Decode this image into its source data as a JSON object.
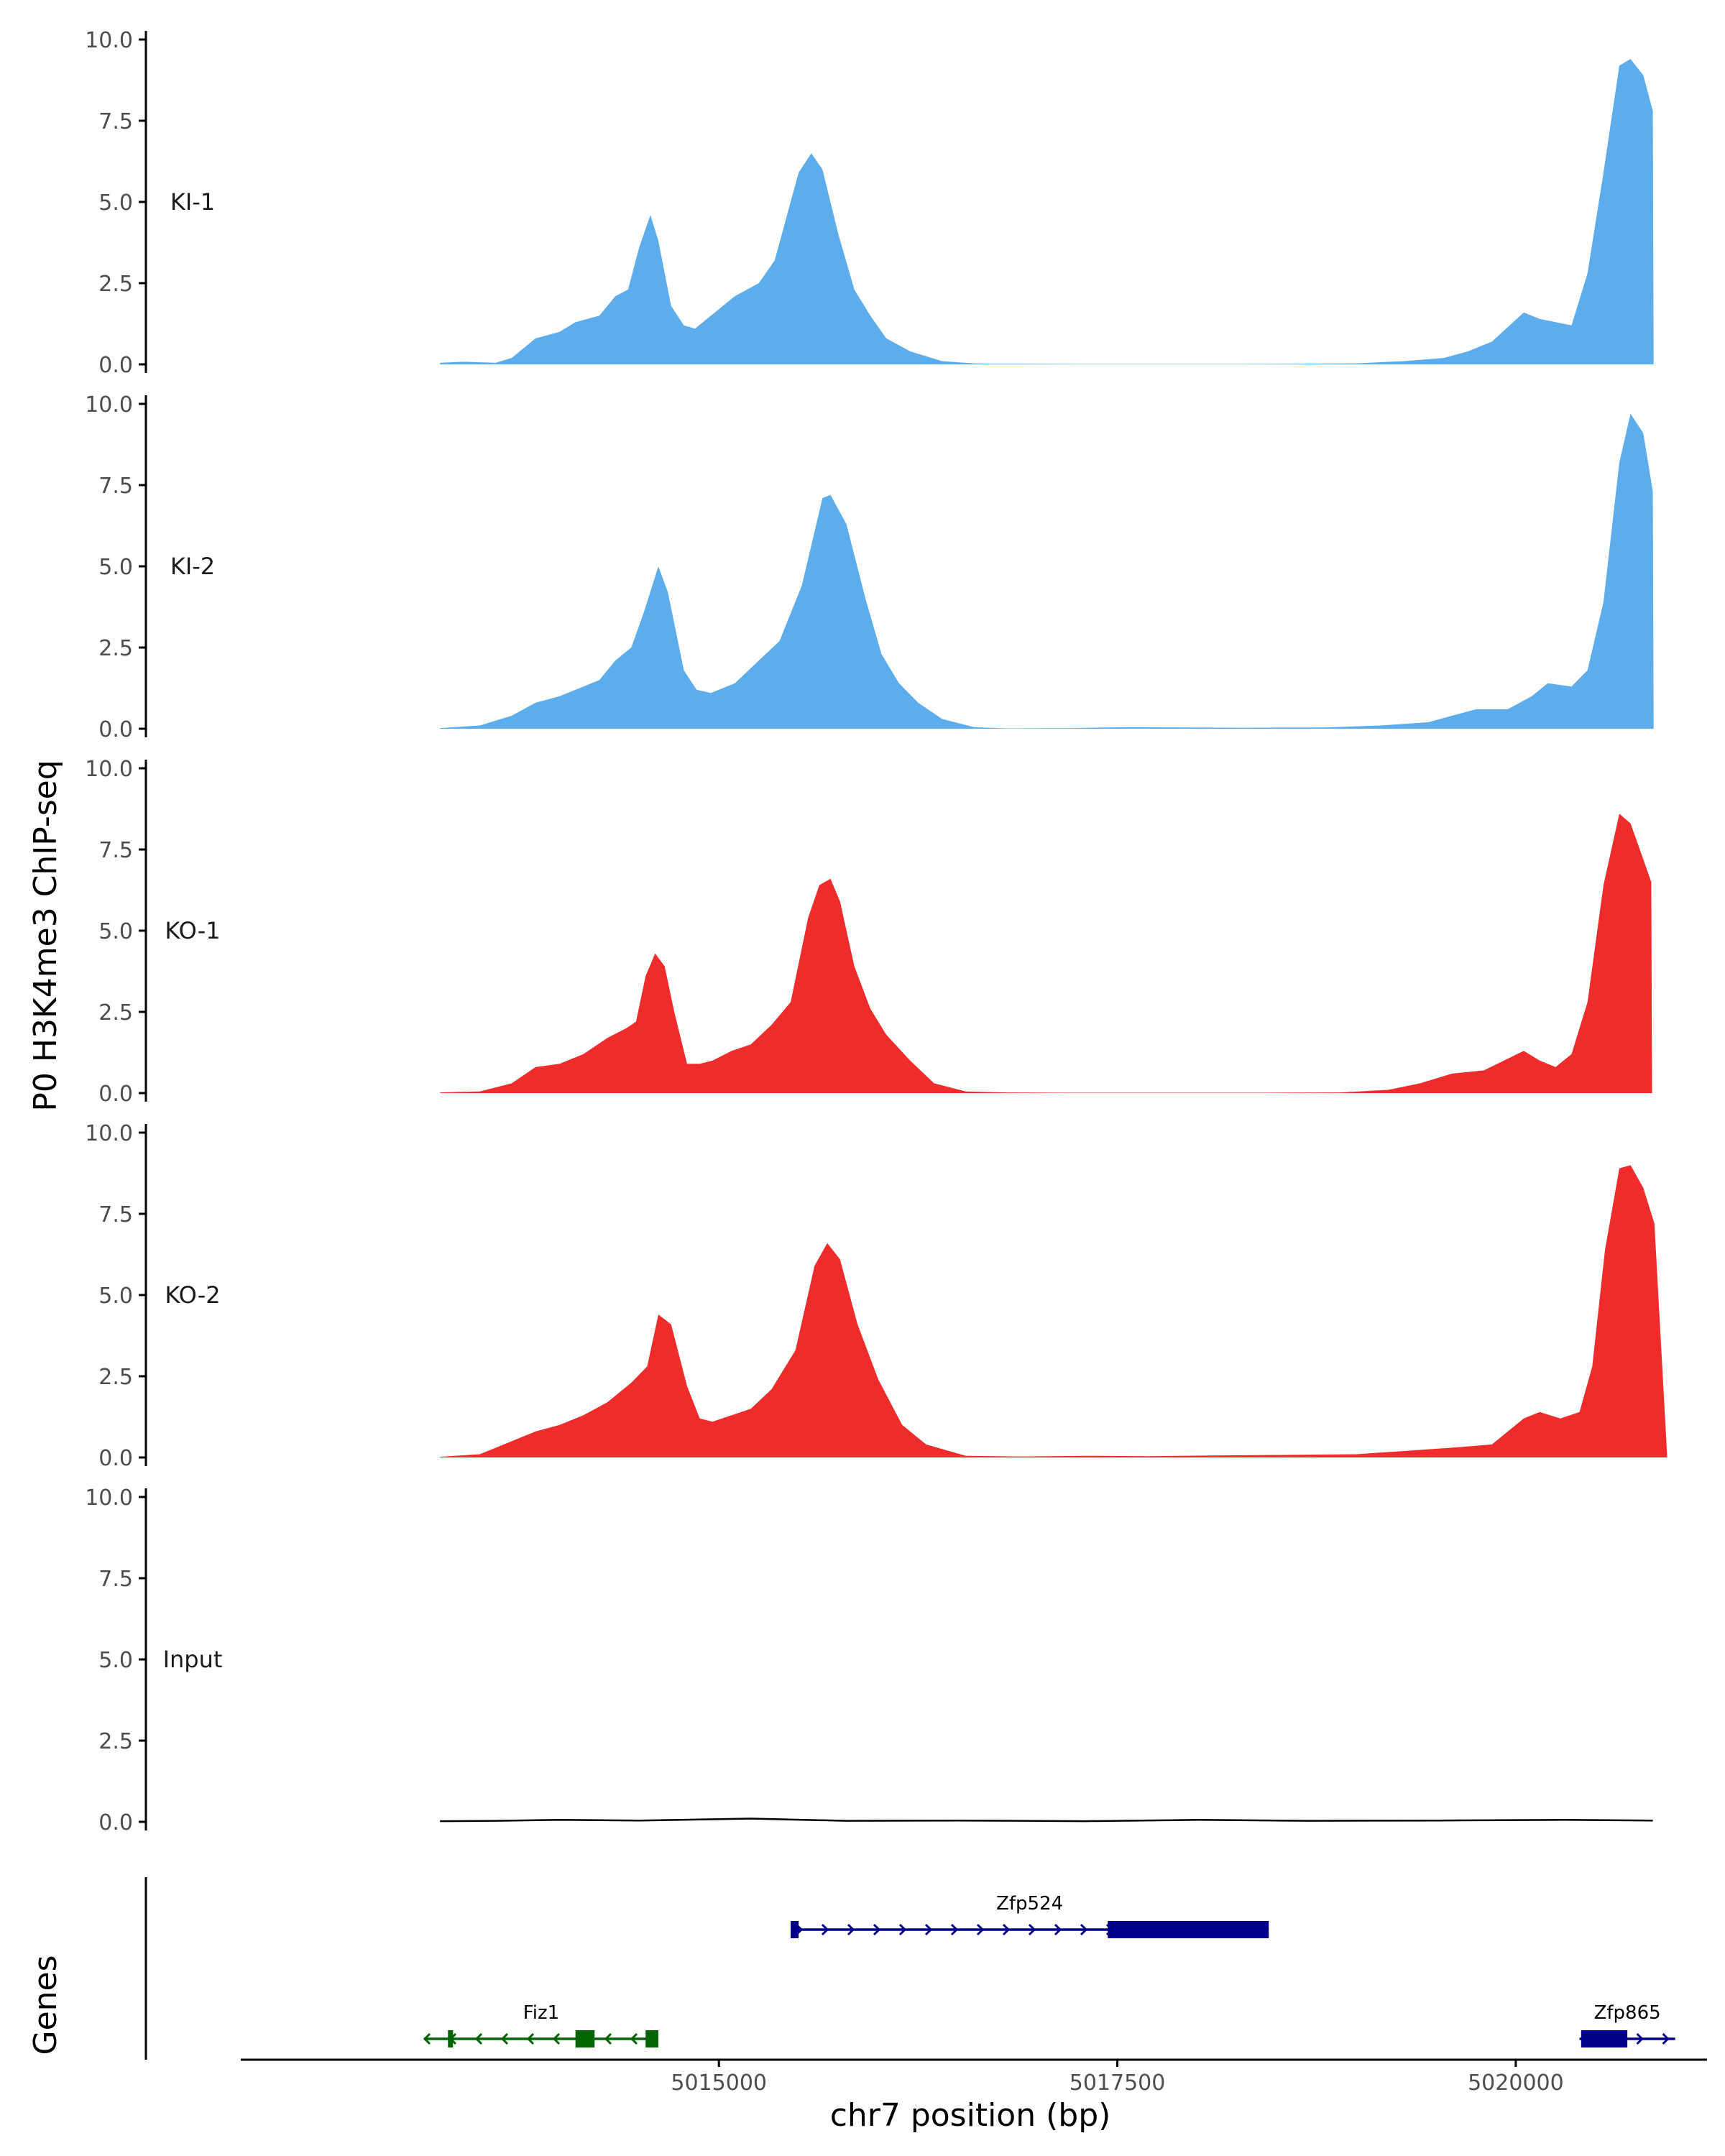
{
  "colors": {
    "ki": "#5DADEC",
    "ko": "#EE2C2C",
    "input": "#000000",
    "fiz1": "#006400",
    "zfp": "#00008B",
    "axis": "#000000"
  },
  "labels": {
    "y_title": "P0 H3K4me3 ChIP-seq",
    "genes_title": "Genes",
    "x_title": "chr7 position (bp)"
  },
  "chart_data": {
    "type": "area",
    "xlabel": "chr7 position (bp)",
    "ylabel": "P0 H3K4me3 ChIP-seq",
    "xlim": [
      5012000,
      5021200
    ],
    "ylim": [
      0,
      10
    ],
    "y_ticks": [
      "0.0",
      "2.5",
      "5.0",
      "7.5",
      "10.0"
    ],
    "x_ticks": [
      5015000,
      5017500,
      5020000
    ],
    "x_tick_labels": [
      "5015000",
      "5017500",
      "5020000"
    ],
    "tracks": [
      {
        "name": "KI-1",
        "color": "#5DADEC",
        "points": [
          [
            5013250,
            0.05
          ],
          [
            5013400,
            0.08
          ],
          [
            5013600,
            0.05
          ],
          [
            5013700,
            0.2
          ],
          [
            5013850,
            0.8
          ],
          [
            5014000,
            1.0
          ],
          [
            5014100,
            1.3
          ],
          [
            5014250,
            1.5
          ],
          [
            5014350,
            2.1
          ],
          [
            5014430,
            2.3
          ],
          [
            5014500,
            3.6
          ],
          [
            5014570,
            4.6
          ],
          [
            5014620,
            3.8
          ],
          [
            5014700,
            1.8
          ],
          [
            5014780,
            1.2
          ],
          [
            5014850,
            1.1
          ],
          [
            5014950,
            1.5
          ],
          [
            5015100,
            2.1
          ],
          [
            5015250,
            2.5
          ],
          [
            5015350,
            3.2
          ],
          [
            5015500,
            5.9
          ],
          [
            5015580,
            6.5
          ],
          [
            5015650,
            6.0
          ],
          [
            5015750,
            4.0
          ],
          [
            5015850,
            2.3
          ],
          [
            5015950,
            1.5
          ],
          [
            5016050,
            0.8
          ],
          [
            5016200,
            0.4
          ],
          [
            5016400,
            0.1
          ],
          [
            5016600,
            0.03
          ],
          [
            5016700,
            0.02
          ],
          [
            5016900,
            0.02
          ],
          [
            5017300,
            0.01
          ],
          [
            5017800,
            0.01
          ],
          [
            5018200,
            0.01
          ],
          [
            5018600,
            0.02
          ],
          [
            5019000,
            0.03
          ],
          [
            5019300,
            0.1
          ],
          [
            5019550,
            0.2
          ],
          [
            5019700,
            0.4
          ],
          [
            5019850,
            0.7
          ],
          [
            5020050,
            1.6
          ],
          [
            5020150,
            1.4
          ],
          [
            5020250,
            1.3
          ],
          [
            5020350,
            1.2
          ],
          [
            5020450,
            2.8
          ],
          [
            5020550,
            5.9
          ],
          [
            5020650,
            9.2
          ],
          [
            5020720,
            9.4
          ],
          [
            5020800,
            8.9
          ],
          [
            5020860,
            7.8
          ],
          [
            5020865,
            0
          ]
        ]
      },
      {
        "name": "KI-2",
        "color": "#5DADEC",
        "points": [
          [
            5013250,
            0.02
          ],
          [
            5013500,
            0.1
          ],
          [
            5013700,
            0.4
          ],
          [
            5013850,
            0.8
          ],
          [
            5014000,
            1.0
          ],
          [
            5014100,
            1.2
          ],
          [
            5014250,
            1.5
          ],
          [
            5014350,
            2.1
          ],
          [
            5014450,
            2.5
          ],
          [
            5014530,
            3.6
          ],
          [
            5014620,
            5.0
          ],
          [
            5014680,
            4.2
          ],
          [
            5014780,
            1.8
          ],
          [
            5014860,
            1.2
          ],
          [
            5014950,
            1.1
          ],
          [
            5015100,
            1.4
          ],
          [
            5015250,
            2.1
          ],
          [
            5015380,
            2.7
          ],
          [
            5015520,
            4.4
          ],
          [
            5015650,
            7.1
          ],
          [
            5015700,
            7.2
          ],
          [
            5015800,
            6.3
          ],
          [
            5015920,
            4.0
          ],
          [
            5016020,
            2.3
          ],
          [
            5016130,
            1.4
          ],
          [
            5016250,
            0.8
          ],
          [
            5016400,
            0.3
          ],
          [
            5016600,
            0.05
          ],
          [
            5016800,
            0.01
          ],
          [
            5017200,
            0.02
          ],
          [
            5017600,
            0.05
          ],
          [
            5017900,
            0.04
          ],
          [
            5018300,
            0.03
          ],
          [
            5018800,
            0.04
          ],
          [
            5019150,
            0.1
          ],
          [
            5019300,
            0.15
          ],
          [
            5019450,
            0.2
          ],
          [
            5019600,
            0.4
          ],
          [
            5019750,
            0.6
          ],
          [
            5019950,
            0.6
          ],
          [
            5020100,
            1.0
          ],
          [
            5020200,
            1.4
          ],
          [
            5020350,
            1.3
          ],
          [
            5020450,
            1.8
          ],
          [
            5020550,
            3.9
          ],
          [
            5020650,
            8.2
          ],
          [
            5020720,
            9.7
          ],
          [
            5020800,
            9.1
          ],
          [
            5020860,
            7.3
          ],
          [
            5020865,
            0
          ]
        ]
      },
      {
        "name": "KO-1",
        "color": "#EE2C2C",
        "points": [
          [
            5013250,
            0.02
          ],
          [
            5013500,
            0.05
          ],
          [
            5013700,
            0.3
          ],
          [
            5013850,
            0.8
          ],
          [
            5014000,
            0.9
          ],
          [
            5014150,
            1.2
          ],
          [
            5014300,
            1.7
          ],
          [
            5014420,
            2.0
          ],
          [
            5014480,
            2.2
          ],
          [
            5014540,
            3.6
          ],
          [
            5014600,
            4.3
          ],
          [
            5014660,
            3.9
          ],
          [
            5014720,
            2.5
          ],
          [
            5014800,
            0.9
          ],
          [
            5014880,
            0.9
          ],
          [
            5014960,
            1.0
          ],
          [
            5015080,
            1.3
          ],
          [
            5015200,
            1.5
          ],
          [
            5015330,
            2.1
          ],
          [
            5015450,
            2.8
          ],
          [
            5015560,
            5.4
          ],
          [
            5015630,
            6.4
          ],
          [
            5015700,
            6.6
          ],
          [
            5015760,
            5.9
          ],
          [
            5015850,
            3.9
          ],
          [
            5015950,
            2.6
          ],
          [
            5016050,
            1.8
          ],
          [
            5016200,
            1.0
          ],
          [
            5016350,
            0.3
          ],
          [
            5016550,
            0.05
          ],
          [
            5016800,
            0.02
          ],
          [
            5017200,
            0.01
          ],
          [
            5017800,
            0.01
          ],
          [
            5018400,
            0.01
          ],
          [
            5018900,
            0.02
          ],
          [
            5019200,
            0.1
          ],
          [
            5019400,
            0.3
          ],
          [
            5019600,
            0.6
          ],
          [
            5019800,
            0.7
          ],
          [
            5020050,
            1.3
          ],
          [
            5020150,
            1.0
          ],
          [
            5020250,
            0.8
          ],
          [
            5020350,
            1.2
          ],
          [
            5020450,
            2.8
          ],
          [
            5020550,
            6.4
          ],
          [
            5020650,
            8.6
          ],
          [
            5020720,
            8.3
          ],
          [
            5020800,
            7.2
          ],
          [
            5020850,
            6.5
          ],
          [
            5020855,
            0
          ]
        ]
      },
      {
        "name": "KO-2",
        "color": "#EE2C2C",
        "points": [
          [
            5013250,
            0.02
          ],
          [
            5013500,
            0.1
          ],
          [
            5013700,
            0.5
          ],
          [
            5013850,
            0.8
          ],
          [
            5014000,
            1.0
          ],
          [
            5014150,
            1.3
          ],
          [
            5014300,
            1.7
          ],
          [
            5014450,
            2.3
          ],
          [
            5014550,
            2.8
          ],
          [
            5014620,
            4.4
          ],
          [
            5014700,
            4.1
          ],
          [
            5014800,
            2.2
          ],
          [
            5014880,
            1.2
          ],
          [
            5014960,
            1.1
          ],
          [
            5015080,
            1.3
          ],
          [
            5015200,
            1.5
          ],
          [
            5015330,
            2.1
          ],
          [
            5015480,
            3.3
          ],
          [
            5015600,
            5.9
          ],
          [
            5015680,
            6.6
          ],
          [
            5015760,
            6.1
          ],
          [
            5015870,
            4.1
          ],
          [
            5016000,
            2.4
          ],
          [
            5016150,
            1.0
          ],
          [
            5016300,
            0.4
          ],
          [
            5016550,
            0.05
          ],
          [
            5016900,
            0.03
          ],
          [
            5017300,
            0.05
          ],
          [
            5017700,
            0.04
          ],
          [
            5018100,
            0.06
          ],
          [
            5018600,
            0.08
          ],
          [
            5019000,
            0.1
          ],
          [
            5019300,
            0.2
          ],
          [
            5019600,
            0.3
          ],
          [
            5019850,
            0.4
          ],
          [
            5020050,
            1.2
          ],
          [
            5020150,
            1.4
          ],
          [
            5020280,
            1.2
          ],
          [
            5020400,
            1.4
          ],
          [
            5020480,
            2.8
          ],
          [
            5020560,
            6.4
          ],
          [
            5020650,
            8.9
          ],
          [
            5020720,
            9.0
          ],
          [
            5020800,
            8.3
          ],
          [
            5020870,
            7.2
          ],
          [
            5020950,
            0
          ]
        ]
      },
      {
        "name": "Input",
        "color": "#000000",
        "points": [
          [
            5013250,
            0.02
          ],
          [
            5013600,
            0.03
          ],
          [
            5014000,
            0.06
          ],
          [
            5014500,
            0.04
          ],
          [
            5015200,
            0.1
          ],
          [
            5015800,
            0.03
          ],
          [
            5016500,
            0.04
          ],
          [
            5017300,
            0.02
          ],
          [
            5018000,
            0.06
          ],
          [
            5018700,
            0.03
          ],
          [
            5019500,
            0.04
          ],
          [
            5020300,
            0.06
          ],
          [
            5020860,
            0.04
          ]
        ]
      }
    ],
    "genes": [
      {
        "name": "Zfp524",
        "row": 0,
        "strand": "+",
        "color": "#00008B",
        "start": 5015450,
        "end": 5018450,
        "exons": [
          [
            5015450,
            5015500
          ],
          [
            5017440,
            5018450
          ]
        ]
      },
      {
        "name": "Fiz1",
        "row": 1,
        "strand": "-",
        "color": "#006400",
        "start": 5013150,
        "end": 5014620,
        "exons": [
          [
            5013300,
            5013330
          ],
          [
            5014100,
            5014220
          ],
          [
            5014540,
            5014620
          ]
        ]
      },
      {
        "name": "Zfp865",
        "row": 1,
        "strand": "+",
        "color": "#00008B",
        "start": 5020400,
        "end": 5021000,
        "exons": [
          [
            5020410,
            5020700
          ]
        ]
      }
    ]
  }
}
